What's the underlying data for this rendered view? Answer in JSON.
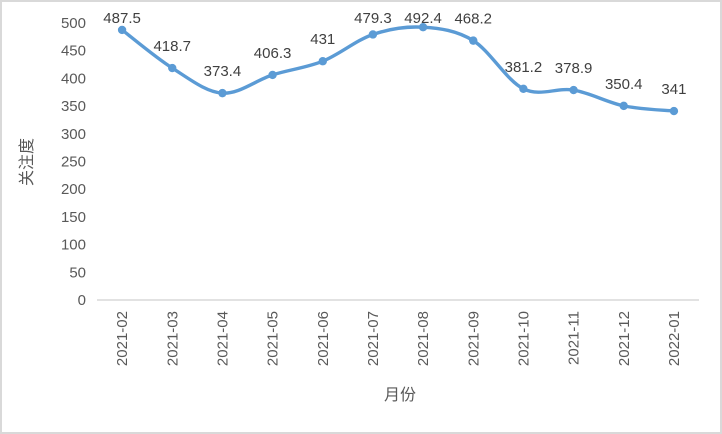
{
  "chart_data": {
    "type": "line",
    "title": "",
    "xlabel": "月份",
    "ylabel": "关注度",
    "categories": [
      "2021-02",
      "2021-03",
      "2021-04",
      "2021-05",
      "2021-06",
      "2021-07",
      "2021-08",
      "2021-09",
      "2021-10",
      "2021-11",
      "2021-12",
      "2022-01"
    ],
    "series": [
      {
        "name": "关注度",
        "values": [
          487.5,
          418.7,
          373.4,
          406.3,
          431,
          479.3,
          492.4,
          468.2,
          381.2,
          378.9,
          350.4,
          341
        ]
      }
    ],
    "data_labels": [
      "487.5",
      "418.7",
      "373.4",
      "406.3",
      "431",
      "479.3",
      "492.4",
      "468.2",
      "381.2",
      "378.9",
      "350.4",
      "341"
    ],
    "ylim": [
      0,
      500
    ],
    "ytick_step": 50,
    "grid": false,
    "legend_position": "none",
    "smooth": true,
    "markers": true,
    "colors": {
      "line": "#5B9BD5",
      "marker": "#5B9BD5",
      "data_label": "#404040",
      "tick_label": "#595959",
      "axis_title": "#595959",
      "axis_line": "#D9D9D9",
      "background": "#FFFFFF",
      "border": "#D9D9D9"
    }
  }
}
